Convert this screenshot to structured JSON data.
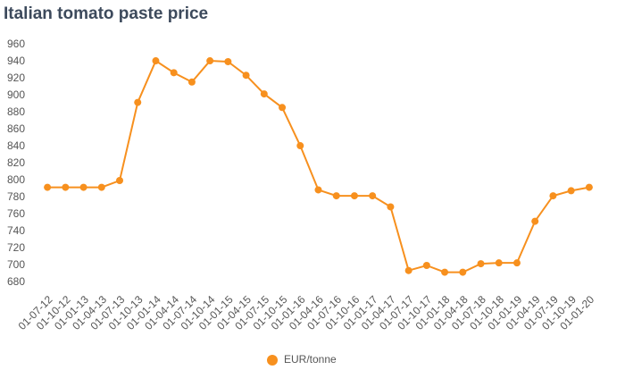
{
  "chart_data": {
    "type": "line",
    "title": "Italian tomato paste price",
    "categories": [
      "01-07-12",
      "01-10-12",
      "01-01-13",
      "01-04-13",
      "01-07-13",
      "01-10-13",
      "01-01-14",
      "01-04-14",
      "01-07-14",
      "01-10-14",
      "01-01-15",
      "01-04-15",
      "01-07-15",
      "01-10-15",
      "01-01-16",
      "01-04-16",
      "01-07-16",
      "01-10-16",
      "01-01-17",
      "01-04-17",
      "01-07-17",
      "01-10-17",
      "01-01-18",
      "01-04-18",
      "01-07-18",
      "01-10-18",
      "01-01-19",
      "01-04-19",
      "01-07-19",
      "01-10-19",
      "01-01-20"
    ],
    "series": [
      {
        "name": "EUR/tonne",
        "color": "#f7901e",
        "values": [
          792,
          792,
          792,
          792,
          800,
          892,
          941,
          927,
          916,
          941,
          940,
          924,
          902,
          886,
          841,
          789,
          782,
          782,
          782,
          769,
          694,
          700,
          692,
          692,
          702,
          703,
          703,
          752,
          782,
          788,
          792
        ]
      }
    ],
    "ylim": [
      670,
      960
    ],
    "yticks": [
      680,
      700,
      720,
      740,
      760,
      780,
      800,
      820,
      840,
      860,
      880,
      900,
      920,
      940,
      960
    ],
    "legend": "bottom"
  }
}
